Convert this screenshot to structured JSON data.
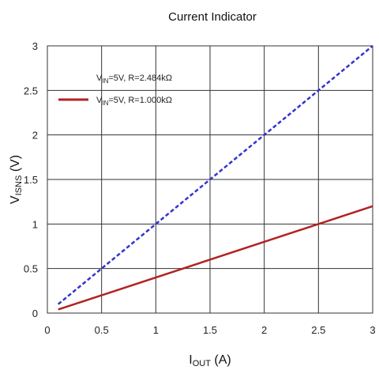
{
  "chart_data": {
    "type": "line",
    "title": "Current Indicator",
    "xlabel": {
      "main": "I",
      "sub": "OUT",
      "unit": " (A)"
    },
    "ylabel": {
      "main": "V",
      "sub": "ISNS",
      "unit": " (V)"
    },
    "xlim": [
      0,
      3
    ],
    "ylim": [
      0,
      3
    ],
    "x_ticks": [
      "0",
      "0.5",
      "1",
      "1.5",
      "2",
      "2.5",
      "3"
    ],
    "y_ticks": [
      "0",
      "0.5",
      "1",
      "1.5",
      "2",
      "2.5",
      "3"
    ],
    "grid": true,
    "legend_position": "top-left",
    "series": [
      {
        "name_parts": {
          "pre": "V",
          "sub": "IN",
          "post": "=5V,  R=2.484kΩ"
        },
        "color": "#3333cc",
        "dash": "dashed",
        "x": [
          0.1,
          3.0
        ],
        "y": [
          0.1,
          3.0
        ]
      },
      {
        "name_parts": {
          "pre": "V",
          "sub": "IN",
          "post": "=5V, R=1.000kΩ"
        },
        "color": "#b22222",
        "dash": "solid",
        "x": [
          0.1,
          3.0
        ],
        "y": [
          0.04,
          1.2
        ]
      }
    ]
  }
}
